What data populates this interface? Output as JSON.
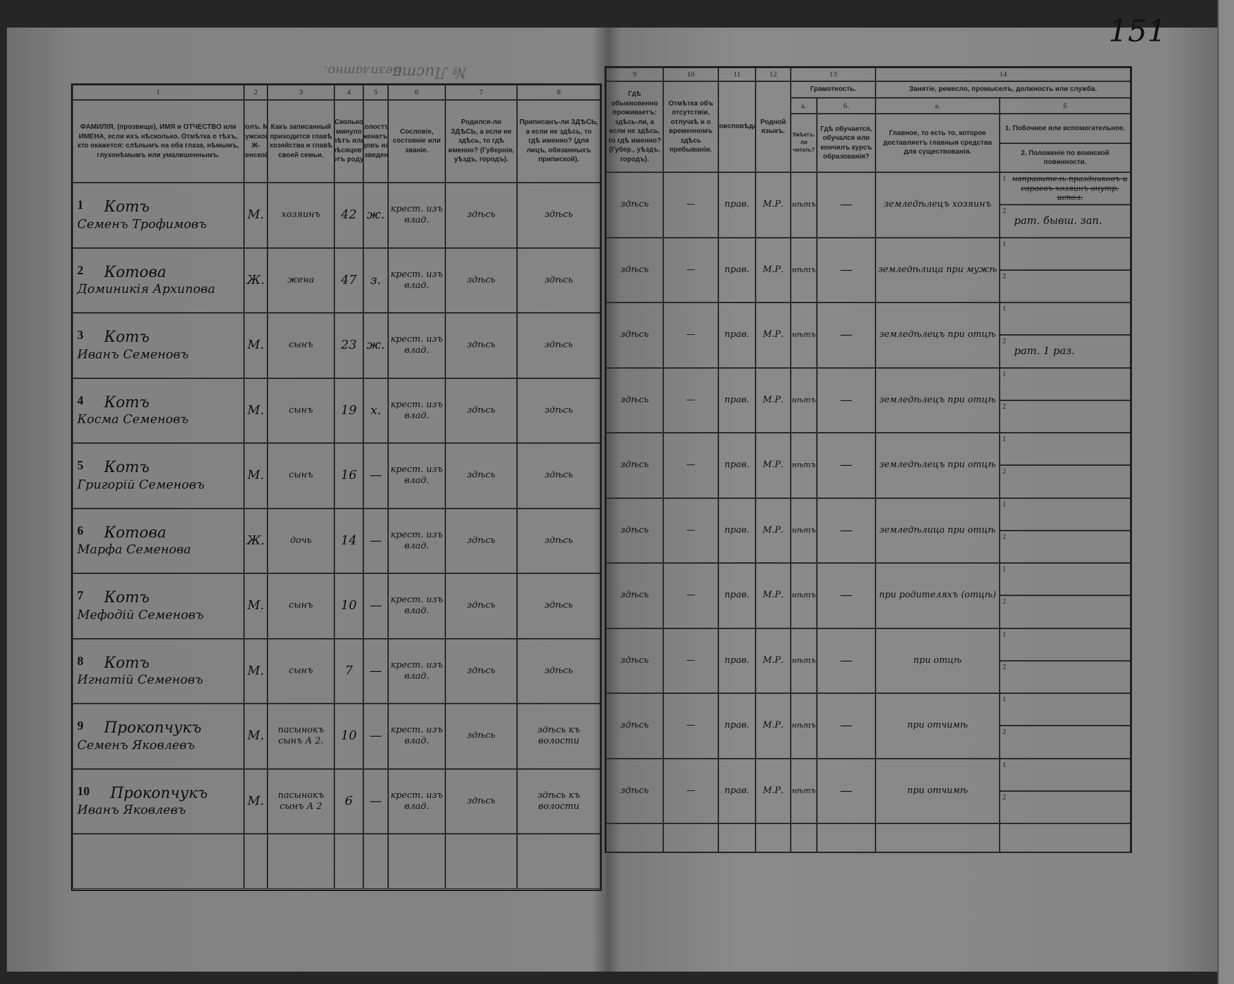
{
  "page_number": "151",
  "top_stamp": "№ Листа",
  "top_stamp2": "Безплатно.",
  "header": {
    "nums": [
      "1",
      "2",
      "3",
      "4",
      "5",
      "6",
      "7",
      "8",
      "9",
      "10",
      "11",
      "12",
      "13",
      "14"
    ],
    "c1": "ФАМИЛІЯ, (прозвище), ИМЯ и ОТЧЕСТВО или ИМЕНА, если ихъ нѣсколько. Отмѣтка о тѣхъ, кто окажется: слѣпымъ на оба глаза, нѣмымъ, глухонѣмымъ или умалишеннымъ.",
    "c2": "Полъ. М-мужской. Ж-женской.",
    "c3": "Какъ записанный приходится главѣ хозяйства и главѣ своей семьи.",
    "c4": "Сколько минуло лѣтъ или мѣсяцевъ отъ роду.",
    "c5": "Холостъ, женатъ, вдовъ или разведенъ.",
    "c6": "Сословіе, состояніе или званіе.",
    "c7": "Родился-ли ЗДѢСЬ, а если не здѣсь, то гдѣ именно? (Губернія, уѣздъ, городъ).",
    "c8": "Приписанъ-ли ЗДѢСЬ, а если не здѣсь, то гдѣ именно? (для лицъ, обязанныхъ припиской).",
    "c9": "Гдѣ обыкновенно проживаетъ: здѣсь-ли, а если не здѣсь, то гдѣ именно? (Губер., уѣздъ, городъ).",
    "c10": "Отмѣтка объ отсутствіи, отлучкѣ и о временномъ здѣсь пребываніи.",
    "c11": "Вѣроисповѣданіе.",
    "c12": "Родной языкъ.",
    "c13": "Грамотность.",
    "c13a_letter": "а.",
    "c13b_letter": "б.",
    "c13a": "Умѣетъ-ли читать?",
    "c13b": "Гдѣ обучается, обучался или кончилъ курсъ образованія?",
    "c14": "Занятіе, ремесло, промыселъ, должность или служба.",
    "c14a_letter": "а.",
    "c14b_letter": "б",
    "c14a": "Главное, то есть то, которое доставляетъ главныя средства для существованія.",
    "c14b1": "1. Побочное или вспомогательное.",
    "c14b2": "2. Положеніе по воинской повинности."
  },
  "rows": [
    {
      "n": "1",
      "surname": "Котъ",
      "name": "Семенъ Трофимовъ",
      "sex": "М.",
      "relation": "хозяинъ",
      "age": "42",
      "marital": "ж.",
      "estate": "крест. изъ влад.",
      "born": "здѣсь",
      "registered": "здѣсь",
      "residence": "здѣсь",
      "absence": "—",
      "religion": "прав.",
      "language": "М.Р.",
      "literate": "нѣтъ",
      "school": "—",
      "occupation": "земледѣлецъ хозяинъ",
      "side": "направитель праздниковъ и сараевъ хозяинъ внутр. испол.",
      "military": "рат. бывш. зап."
    },
    {
      "n": "2",
      "surname": "Котова",
      "name": "Доминикія Архипова",
      "sex": "Ж.",
      "relation": "жена",
      "age": "47",
      "marital": "з.",
      "estate": "крест. изъ влад.",
      "born": "здѣсь",
      "registered": "здѣсь",
      "residence": "здѣсь",
      "absence": "—",
      "religion": "прав.",
      "language": "М.Р.",
      "literate": "нѣтъ",
      "school": "—",
      "occupation": "земледѣлица при мужѣ",
      "side": "",
      "military": ""
    },
    {
      "n": "3",
      "surname": "Котъ",
      "name": "Иванъ Семеновъ",
      "sex": "М.",
      "relation": "сынъ",
      "age": "23",
      "marital": "ж.",
      "estate": "крест. изъ влад.",
      "born": "здѣсь",
      "registered": "здѣсь",
      "residence": "здѣсь",
      "absence": "—",
      "religion": "прав.",
      "language": "М.Р.",
      "literate": "нѣтъ",
      "school": "—",
      "occupation": "земледѣлецъ при отцѣ",
      "side": "",
      "military": "рат. 1 раз."
    },
    {
      "n": "4",
      "surname": "Котъ",
      "name": "Косма Семеновъ",
      "sex": "М.",
      "relation": "сынъ",
      "age": "19",
      "marital": "х.",
      "estate": "крест. изъ влад.",
      "born": "здѣсь",
      "registered": "здѣсь",
      "residence": "здѣсь",
      "absence": "—",
      "religion": "прав.",
      "language": "М.Р.",
      "literate": "нѣтъ",
      "school": "—",
      "occupation": "земледѣлецъ при отцѣ",
      "side": "",
      "military": ""
    },
    {
      "n": "5",
      "surname": "Котъ",
      "name": "Григорій Семеновъ",
      "sex": "М.",
      "relation": "сынъ",
      "age": "16",
      "marital": "—",
      "estate": "крест. изъ влад.",
      "born": "здѣсь",
      "registered": "здѣсь",
      "residence": "здѣсь",
      "absence": "—",
      "religion": "прав.",
      "language": "М.Р.",
      "literate": "нѣтъ",
      "school": "—",
      "occupation": "земледѣлецъ при отцѣ",
      "side": "",
      "military": ""
    },
    {
      "n": "6",
      "surname": "Котова",
      "name": "Марфа Семенова",
      "sex": "Ж.",
      "relation": "дочь",
      "age": "14",
      "marital": "—",
      "estate": "крест. изъ влад.",
      "born": "здѣсь",
      "registered": "здѣсь",
      "residence": "здѣсь",
      "absence": "—",
      "religion": "прав.",
      "language": "М.Р.",
      "literate": "нѣтъ",
      "school": "—",
      "occupation": "земледѣлица при отцѣ",
      "side": "",
      "military": ""
    },
    {
      "n": "7",
      "surname": "Котъ",
      "name": "Мефодій Семеновъ",
      "sex": "М.",
      "relation": "сынъ",
      "age": "10",
      "marital": "—",
      "estate": "крест. изъ влад.",
      "born": "здѣсь",
      "registered": "здѣсь",
      "residence": "здѣсь",
      "absence": "—",
      "religion": "прав.",
      "language": "М.Р.",
      "literate": "нѣтъ",
      "school": "—",
      "occupation": "при родителяхъ (отцѣ)",
      "side": "",
      "military": ""
    },
    {
      "n": "8",
      "surname": "Котъ",
      "name": "Игнатій Семеновъ",
      "sex": "М.",
      "relation": "сынъ",
      "age": "7",
      "marital": "—",
      "estate": "крест. изъ влад.",
      "born": "здѣсь",
      "registered": "здѣсь",
      "residence": "здѣсь",
      "absence": "—",
      "religion": "прав.",
      "language": "М.Р.",
      "literate": "нѣтъ",
      "school": "—",
      "occupation": "при отцѣ",
      "side": "",
      "military": ""
    },
    {
      "n": "9",
      "surname": "Прокопчукъ",
      "name": "Семенъ Яковлевъ",
      "sex": "М.",
      "relation": "пасынокъ сынъ А 2.",
      "age": "10",
      "marital": "—",
      "estate": "крест. изъ влад.",
      "born": "здѣсь",
      "registered": "здѣсь къ волости",
      "residence": "здѣсь",
      "absence": "—",
      "religion": "прав.",
      "language": "М.Р.",
      "literate": "нѣтъ",
      "school": "—",
      "occupation": "при отчимѣ",
      "side": "",
      "military": ""
    },
    {
      "n": "10",
      "surname": "Прокопчукъ",
      "name": "Иванъ Яковлевъ",
      "sex": "М.",
      "relation": "пасынокъ сынъ А 2",
      "age": "6",
      "marital": "—",
      "estate": "крест. изъ влад.",
      "born": "здѣсь",
      "registered": "здѣсь къ волости",
      "residence": "здѣсь",
      "absence": "—",
      "religion": "прав.",
      "language": "М.Р.",
      "literate": "нѣтъ",
      "school": "—",
      "occupation": "при отчимѣ",
      "side": "",
      "military": ""
    }
  ]
}
